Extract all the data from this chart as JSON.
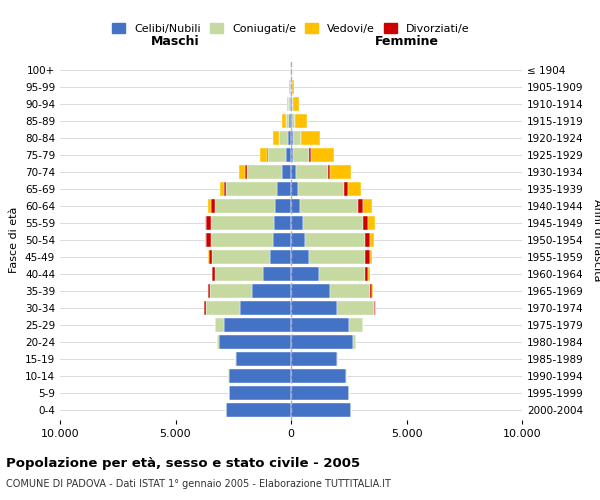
{
  "age_groups": [
    "0-4",
    "5-9",
    "10-14",
    "15-19",
    "20-24",
    "25-29",
    "30-34",
    "35-39",
    "40-44",
    "45-49",
    "50-54",
    "55-59",
    "60-64",
    "65-69",
    "70-74",
    "75-79",
    "80-84",
    "85-89",
    "90-94",
    "95-99",
    "100+"
  ],
  "birth_years": [
    "2000-2004",
    "1995-1999",
    "1990-1994",
    "1985-1989",
    "1980-1984",
    "1975-1979",
    "1970-1974",
    "1965-1969",
    "1960-1964",
    "1955-1959",
    "1950-1954",
    "1945-1949",
    "1940-1944",
    "1935-1939",
    "1930-1934",
    "1925-1929",
    "1920-1924",
    "1915-1919",
    "1910-1914",
    "1905-1909",
    "≤ 1904"
  ],
  "maschi_celibi": [
    2800,
    2700,
    2700,
    2400,
    3100,
    2900,
    2200,
    1700,
    1200,
    900,
    780,
    750,
    700,
    600,
    400,
    200,
    120,
    80,
    50,
    30,
    20
  ],
  "maschi_coniugati": [
    0,
    0,
    10,
    30,
    100,
    400,
    1500,
    1800,
    2100,
    2500,
    2700,
    2700,
    2600,
    2200,
    1500,
    800,
    400,
    150,
    60,
    30,
    5
  ],
  "maschi_vedovi": [
    0,
    0,
    0,
    0,
    0,
    0,
    5,
    10,
    20,
    30,
    50,
    70,
    100,
    150,
    250,
    300,
    250,
    150,
    80,
    30,
    5
  ],
  "maschi_divorziati": [
    0,
    0,
    0,
    0,
    5,
    10,
    50,
    80,
    100,
    150,
    180,
    220,
    180,
    120,
    80,
    30,
    5,
    0,
    0,
    0,
    0
  ],
  "femmine_celibi": [
    2600,
    2500,
    2400,
    2000,
    2700,
    2500,
    2000,
    1700,
    1200,
    800,
    600,
    500,
    400,
    300,
    200,
    100,
    80,
    60,
    40,
    20,
    20
  ],
  "femmine_coniugati": [
    0,
    0,
    10,
    30,
    100,
    600,
    1600,
    1700,
    2000,
    2400,
    2600,
    2600,
    2500,
    2000,
    1400,
    700,
    350,
    130,
    60,
    20,
    5
  ],
  "femmine_vedovi": [
    0,
    0,
    0,
    0,
    5,
    5,
    10,
    30,
    50,
    100,
    200,
    300,
    400,
    600,
    900,
    1000,
    800,
    500,
    250,
    100,
    20
  ],
  "femmine_divorziati": [
    0,
    0,
    0,
    0,
    5,
    10,
    50,
    100,
    150,
    200,
    200,
    250,
    200,
    150,
    100,
    50,
    10,
    0,
    0,
    0,
    0
  ],
  "colors": {
    "celibi": "#4472c4",
    "coniugati": "#c5d9a0",
    "vedovi": "#ffc000",
    "divorziati": "#cc0000"
  },
  "title": "Popolazione per età, sesso e stato civile - 2005",
  "subtitle": "COMUNE DI PADOVA - Dati ISTAT 1° gennaio 2005 - Elaborazione TUTTITALIA.IT",
  "ylabel_left": "Fasce di età",
  "ylabel_right": "Anni di nascita",
  "xlabel_left": "Maschi",
  "xlabel_right": "Femmine",
  "xlim": 10000,
  "background_color": "#ffffff",
  "grid_color": "#cccccc"
}
